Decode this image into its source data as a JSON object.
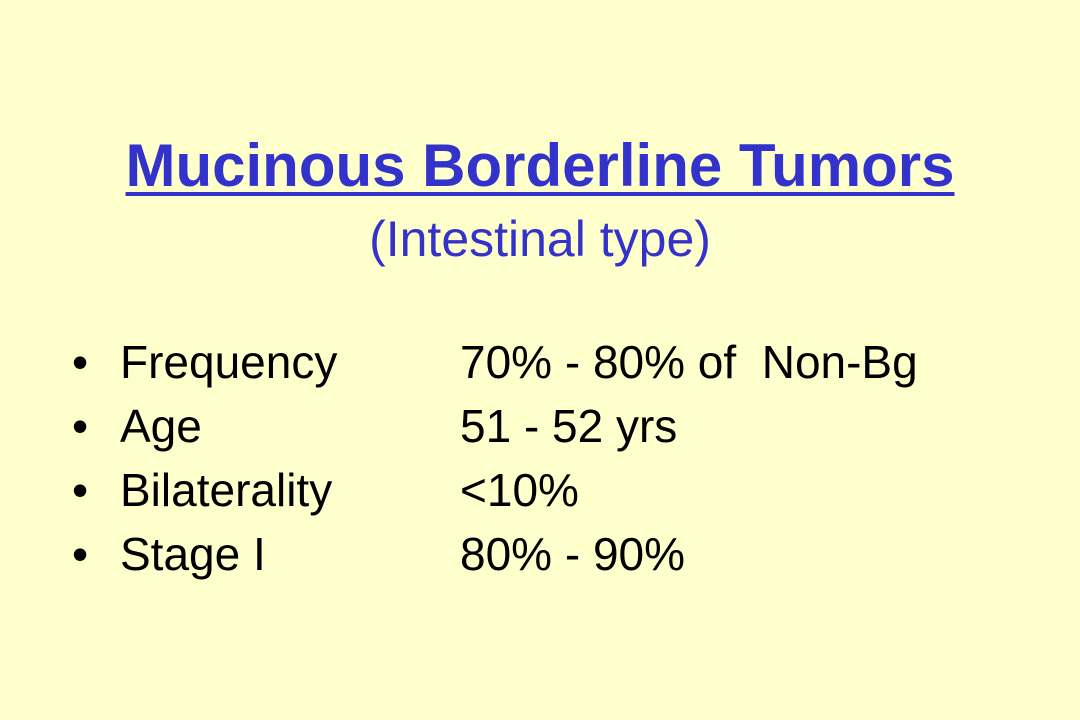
{
  "slide": {
    "title": "Mucinous Borderline Tumors",
    "subtitle": "(Intestinal type)",
    "bullet_glyph": "•",
    "items": [
      {
        "label": "Frequency",
        "value": "70% - 80% of  Non-Bg"
      },
      {
        "label": "Age",
        "value": "51 - 52 yrs"
      },
      {
        "label": "Bilaterality",
        "value": "<10%"
      },
      {
        "label": "Stage I",
        "value": "80% - 90%"
      }
    ]
  },
  "colors": {
    "background": "#ffffcc",
    "title": "#3333cc",
    "body_text": "#000000"
  }
}
